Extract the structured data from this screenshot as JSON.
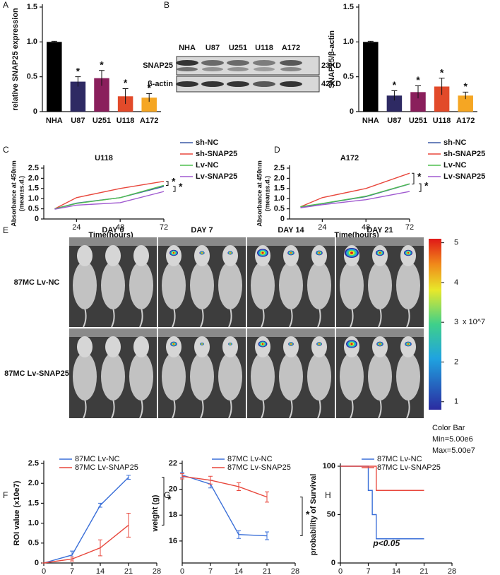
{
  "chart_data": [
    {
      "type": "bar",
      "panel": "A",
      "ylabel": "relative SNAP25 expression",
      "categories": [
        "NHA",
        "U87",
        "U251",
        "U118",
        "A172"
      ],
      "values": [
        1.0,
        0.43,
        0.48,
        0.22,
        0.2
      ],
      "errors": [
        0.01,
        0.07,
        0.11,
        0.11,
        0.06
      ],
      "colors": [
        "#000000",
        "#2e2a63",
        "#8a1f5c",
        "#e24a2a",
        "#f5a623"
      ],
      "significance": [
        null,
        "*",
        "*",
        "*",
        "*"
      ],
      "ylim": [
        0,
        1.5
      ],
      "yticks": [
        0,
        0.5,
        {
          "value": 1,
          "label": "1.0"
        },
        1.5
      ]
    },
    {
      "type": "bar",
      "ylabel": "SNAP25/β-actin",
      "categories": [
        "NHA",
        "U87",
        "U251",
        "U118",
        "A172"
      ],
      "values": [
        1.0,
        0.23,
        0.28,
        0.36,
        0.23
      ],
      "errors": [
        0.01,
        0.07,
        0.09,
        0.12,
        0.05
      ],
      "colors": [
        "#000000",
        "#2e2a63",
        "#8a1f5c",
        "#e24a2a",
        "#f5a623"
      ],
      "significance": [
        null,
        "*",
        "*",
        "*",
        "*"
      ],
      "ylim": [
        0,
        1.5
      ],
      "yticks": [
        0,
        0.5,
        {
          "value": 1,
          "label": "1.0"
        },
        1.5
      ]
    },
    {
      "type": "line",
      "panel": "C",
      "title": "U118",
      "xlabel": "Time(hours)",
      "ylabel": [
        "Absorbance at 450nm",
        "(mean±s.d.)"
      ],
      "x": [
        12,
        24,
        48,
        72
      ],
      "xlim": [
        6,
        72
      ],
      "xticks": [
        24,
        48,
        72
      ],
      "ylim": [
        0,
        2.5
      ],
      "yticks": [
        0,
        0.5,
        {
          "value": 1,
          "label": "1.0"
        },
        1.5,
        {
          "value": 2,
          "label": "2.0"
        },
        2.5
      ],
      "series": [
        {
          "name": "sh-NC",
          "color": "#3c5aa6",
          "values": [
            0.5,
            0.78,
            1.05,
            1.6
          ]
        },
        {
          "name": "sh-SNAP25",
          "color": "#e8473c",
          "values": [
            0.5,
            1.05,
            1.5,
            1.85
          ]
        },
        {
          "name": "Lv-NC",
          "color": "#4fbf4f",
          "values": [
            0.5,
            0.76,
            1.05,
            1.65
          ]
        },
        {
          "name": "Lv-SNAP25",
          "color": "#a05ad0",
          "values": [
            0.48,
            0.68,
            0.8,
            1.35
          ]
        }
      ],
      "significance": [
        "*",
        "*"
      ]
    },
    {
      "type": "line",
      "panel": "D",
      "title": "A172",
      "xlabel": "Time(hours)",
      "ylabel": [
        "Absorbance at 450nm",
        "(mean±s.d.)"
      ],
      "x": [
        12,
        24,
        48,
        72
      ],
      "xlim": [
        6,
        72
      ],
      "xticks": [
        24,
        48,
        72
      ],
      "ylim": [
        0,
        2.5
      ],
      "yticks": [
        0,
        0.5,
        {
          "value": 1,
          "label": "1.0"
        },
        1.5,
        {
          "value": 2,
          "label": "2.0"
        },
        2.5
      ],
      "series": [
        {
          "name": "sh-NC",
          "color": "#3c5aa6",
          "values": [
            0.58,
            0.75,
            1.1,
            1.72
          ]
        },
        {
          "name": "sh-SNAP25",
          "color": "#e8473c",
          "values": [
            0.6,
            1.05,
            1.5,
            2.25
          ]
        },
        {
          "name": "Lv-NC",
          "color": "#4fbf4f",
          "values": [
            0.6,
            0.76,
            1.12,
            1.73
          ]
        },
        {
          "name": "Lv-SNAP25",
          "color": "#a05ad0",
          "values": [
            0.55,
            0.7,
            0.95,
            1.35
          ]
        }
      ],
      "significance": [
        "*",
        "*"
      ]
    },
    {
      "type": "line",
      "panel": "F",
      "xlabel": "Time(days)",
      "ylabel": "ROI value (x10e7)",
      "x": [
        0,
        7,
        14,
        21
      ],
      "xlim": [
        0,
        28
      ],
      "xticks": [
        0,
        7,
        14,
        21,
        28
      ],
      "ylim": [
        0,
        2.5
      ],
      "yticks": [
        0,
        0.5,
        {
          "value": 1,
          "label": "1.0"
        },
        1.5,
        {
          "value": 2,
          "label": "2.0"
        },
        2.5
      ],
      "series": [
        {
          "name": "87MC Lv-NC",
          "color": "#3a6fd8",
          "values": [
            0,
            0.2,
            1.45,
            2.15
          ],
          "errors": [
            0,
            0.1,
            0.05,
            0.05
          ]
        },
        {
          "name": "87MC Lv-SNAP25",
          "color": "#e8473c",
          "values": [
            0,
            0.1,
            0.38,
            0.95
          ],
          "errors": [
            0,
            0.05,
            0.2,
            0.3
          ]
        }
      ],
      "significance": [
        "*"
      ]
    },
    {
      "type": "line",
      "panel": "G",
      "xlabel": "Time(days)",
      "ylabel": "weight (g)",
      "x": [
        0,
        7,
        14,
        21
      ],
      "xlim": [
        0,
        28
      ],
      "xticks": [
        0,
        7,
        14,
        21,
        28
      ],
      "ylim": [
        14.3,
        22
      ],
      "yticks": [
        16,
        18,
        20,
        22
      ],
      "series": [
        {
          "name": "87MC Lv-NC",
          "color": "#3a6fd8",
          "values": [
            21.1,
            20.4,
            16.5,
            16.4
          ],
          "errors": [
            0.2,
            0.3,
            0.3,
            0.3
          ]
        },
        {
          "name": "87MC Lv-SNAP25",
          "color": "#e8473c",
          "values": [
            21.0,
            20.7,
            20.2,
            19.4
          ],
          "errors": [
            0.2,
            0.3,
            0.3,
            0.4
          ]
        }
      ],
      "significance": [
        "*"
      ]
    },
    {
      "type": "step",
      "panel": "H",
      "xlabel": "Time(days)",
      "ylabel": "probability of Survival",
      "xlim": [
        0,
        28
      ],
      "xticks": [
        0,
        7,
        14,
        21,
        28
      ],
      "ylim": [
        0,
        100
      ],
      "yticks": [
        0,
        50,
        100
      ],
      "annotation": "p<0.05",
      "series": [
        {
          "name": "87MC Lv-NC",
          "color": "#3a6fd8",
          "x": [
            0,
            7,
            8,
            9,
            21
          ],
          "values": [
            100,
            75,
            50,
            25,
            25
          ]
        },
        {
          "name": "87MC Lv-SNAP25",
          "color": "#e8473c",
          "x": [
            0,
            9,
            21
          ],
          "values": [
            100,
            75,
            75
          ]
        }
      ]
    }
  ],
  "blot": {
    "panel": "B",
    "lanes": [
      "NHA",
      "U87",
      "U251",
      "U118",
      "A172"
    ],
    "bands": [
      {
        "label": "SNAP25",
        "size": "23KD"
      },
      {
        "label": "β-actin",
        "size": "42KD"
      }
    ]
  },
  "imaging": {
    "panel": "E",
    "days": [
      "DAY 0",
      "DAY 7",
      "DAY 14",
      "DAY 21"
    ],
    "groups": [
      "87MC Lv-NC",
      "87MC Lv-SNAP25"
    ],
    "colorbar": {
      "ticks": [
        1,
        2,
        3,
        4,
        5
      ],
      "lim": [
        0.8,
        5.1
      ],
      "unit": "x 10^7",
      "title": "Color Bar",
      "min": "Min=5.00e6",
      "max": "Max=5.00e7"
    }
  }
}
